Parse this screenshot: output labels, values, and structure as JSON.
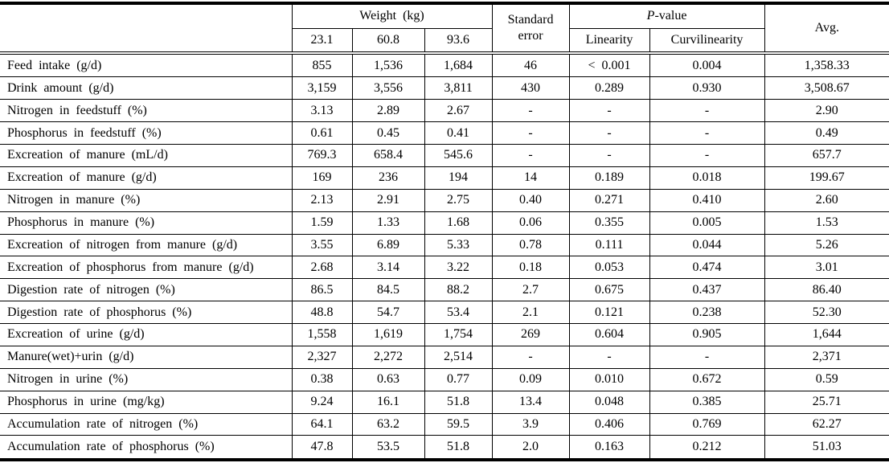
{
  "table": {
    "header": {
      "weight_group": "Weight (kg)",
      "weight_levels": [
        "23.1",
        "60.8",
        "93.6"
      ],
      "standard_error": "Standard error",
      "p_value_prefix": "P",
      "p_value_suffix": "-value",
      "p_value_levels": [
        "Linearity",
        "Curvilinearity"
      ],
      "avg": "Avg."
    },
    "rows": [
      {
        "label": "Feed intake (g/d)",
        "values": [
          "855",
          "1,536",
          "1,684",
          "46",
          "< 0.001",
          "0.004",
          "1,358.33"
        ]
      },
      {
        "label": "Drink amount (g/d)",
        "values": [
          "3,159",
          "3,556",
          "3,811",
          "430",
          "0.289",
          "0.930",
          "3,508.67"
        ]
      },
      {
        "label": "Nitrogen in feedstuff (%)",
        "values": [
          "3.13",
          "2.89",
          "2.67",
          "-",
          "-",
          "-",
          "2.90"
        ]
      },
      {
        "label": "Phosphorus in feedstuff (%)",
        "values": [
          "0.61",
          "0.45",
          "0.41",
          "-",
          "-",
          "-",
          "0.49"
        ]
      },
      {
        "label": "Excreation of manure (mL/d)",
        "values": [
          "769.3",
          "658.4",
          "545.6",
          "-",
          "-",
          "-",
          "657.7"
        ]
      },
      {
        "label": "Excreation of manure (g/d)",
        "values": [
          "169",
          "236",
          "194",
          "14",
          "0.189",
          "0.018",
          "199.67"
        ]
      },
      {
        "label": "Nitrogen in manure (%)",
        "values": [
          "2.13",
          "2.91",
          "2.75",
          "0.40",
          "0.271",
          "0.410",
          "2.60"
        ]
      },
      {
        "label": "Phosphorus in manure (%)",
        "values": [
          "1.59",
          "1.33",
          "1.68",
          "0.06",
          "0.355",
          "0.005",
          "1.53"
        ]
      },
      {
        "label": "Excreation of nitrogen from manure (g/d)",
        "values": [
          "3.55",
          "6.89",
          "5.33",
          "0.78",
          "0.111",
          "0.044",
          "5.26"
        ]
      },
      {
        "label": "Excreation of phosphorus from manure (g/d)",
        "values": [
          "2.68",
          "3.14",
          "3.22",
          "0.18",
          "0.053",
          "0.474",
          "3.01"
        ]
      },
      {
        "label": "Digestion rate of nitrogen (%)",
        "values": [
          "86.5",
          "84.5",
          "88.2",
          "2.7",
          "0.675",
          "0.437",
          "86.40"
        ]
      },
      {
        "label": "Digestion rate of phosphorus (%)",
        "values": [
          "48.8",
          "54.7",
          "53.4",
          "2.1",
          "0.121",
          "0.238",
          "52.30"
        ]
      },
      {
        "label": "Excreation of urine (g/d)",
        "values": [
          "1,558",
          "1,619",
          "1,754",
          "269",
          "0.604",
          "0.905",
          "1,644"
        ]
      },
      {
        "label": "Manure(wet)+urin (g/d)",
        "values": [
          "2,327",
          "2,272",
          "2,514",
          "-",
          "-",
          "-",
          "2,371"
        ]
      },
      {
        "label": "Nitrogen in urine (%)",
        "values": [
          "0.38",
          "0.63",
          "0.77",
          "0.09",
          "0.010",
          "0.672",
          "0.59"
        ]
      },
      {
        "label": "Phosphorus in urine (mg/kg)",
        "values": [
          "9.24",
          "16.1",
          "51.8",
          "13.4",
          "0.048",
          "0.385",
          "25.71"
        ]
      },
      {
        "label": "Accumulation rate of nitrogen (%)",
        "values": [
          "64.1",
          "63.2",
          "59.5",
          "3.9",
          "0.406",
          "0.769",
          "62.27"
        ]
      },
      {
        "label": "Accumulation rate of phosphorus (%)",
        "values": [
          "47.8",
          "53.5",
          "51.8",
          "2.0",
          "0.163",
          "0.212",
          "51.03"
        ]
      }
    ]
  }
}
